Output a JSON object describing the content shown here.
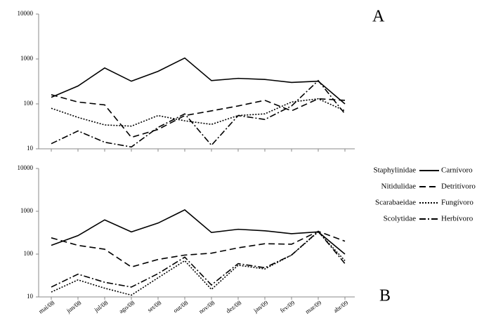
{
  "chart_data": [
    {
      "type": "line",
      "label": "A",
      "log_scale": true,
      "ylim": [
        10,
        10000
      ],
      "yticks": [
        10,
        100,
        1000,
        10000
      ],
      "series": [
        {
          "color": "#000000",
          "dash": "solid",
          "values": [
            140,
            250,
            630,
            320,
            530,
            1050,
            330,
            370,
            350,
            300,
            320,
            100
          ]
        },
        {
          "color": "#000000",
          "dash": "dashed",
          "values": [
            160,
            110,
            95,
            18,
            27,
            55,
            70,
            90,
            120,
            70,
            130,
            120
          ]
        },
        {
          "color": "#000000",
          "dash": "dotted",
          "values": [
            80,
            50,
            34,
            32,
            55,
            42,
            35,
            55,
            60,
            110,
            130,
            70
          ]
        },
        {
          "color": "#000000",
          "dash": "dashdot",
          "values": [
            13,
            25,
            14,
            11,
            30,
            60,
            12,
            55,
            45,
            90,
            330,
            60
          ]
        }
      ]
    },
    {
      "type": "line",
      "label": "B",
      "log_scale": true,
      "categories": [
        "mai/08",
        "jun/08",
        "jul/08",
        "ago/08",
        "set/08",
        "out/08",
        "nov/08",
        "dez/08",
        "jan/09",
        "fev/09",
        "mar/09",
        "abr/09"
      ],
      "ylim": [
        10,
        10000
      ],
      "yticks": [
        10,
        100,
        1000,
        10000
      ],
      "series": [
        {
          "name": "Staphylinidae",
          "guild": "Carnívoro",
          "color": "#000000",
          "dash": "solid",
          "values": [
            160,
            270,
            630,
            330,
            530,
            1080,
            320,
            380,
            350,
            300,
            330,
            100
          ]
        },
        {
          "name": "Nitidulidae",
          "guild": "Detritívoro",
          "color": "#000000",
          "dash": "dashed",
          "values": [
            240,
            160,
            130,
            50,
            75,
            95,
            105,
            140,
            175,
            170,
            340,
            200
          ]
        },
        {
          "name": "Scarabaeidae",
          "guild": "Fungívoro",
          "color": "#000000",
          "dash": "dotted",
          "values": [
            13,
            25,
            16,
            11,
            28,
            70,
            15,
            55,
            45,
            95,
            330,
            70
          ]
        },
        {
          "name": "Scolytidae",
          "guild": "Herbívoro",
          "color": "#000000",
          "dash": "dashdot",
          "values": [
            17,
            34,
            22,
            17,
            35,
            85,
            19,
            60,
            48,
            95,
            340,
            60
          ]
        }
      ]
    }
  ]
}
